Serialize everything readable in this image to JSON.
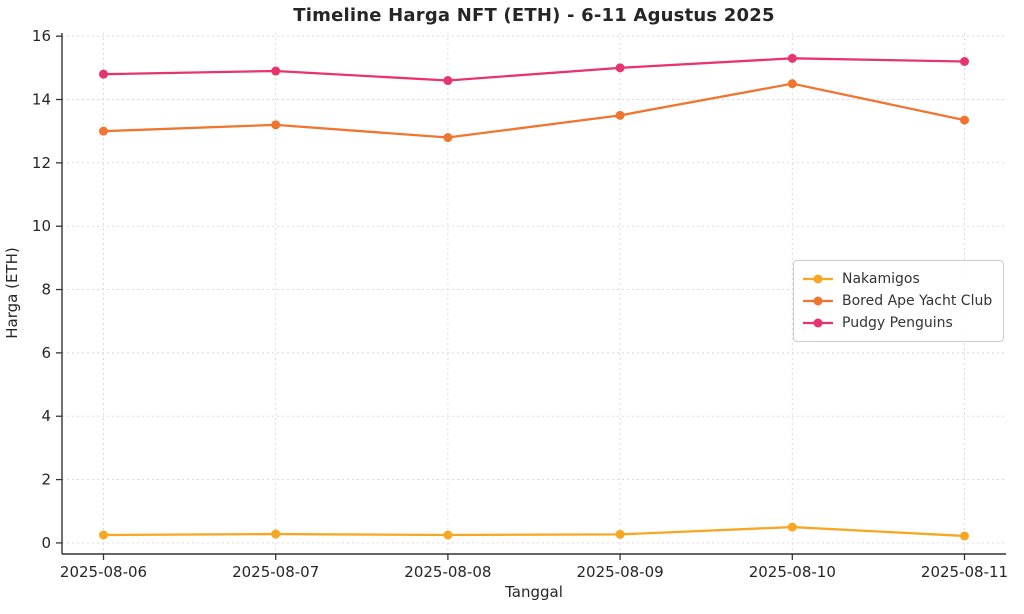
{
  "chart_data": {
    "type": "line",
    "title": "Timeline Harga NFT (ETH) - 6-11 Agustus 2025",
    "xlabel": "Tanggal",
    "ylabel": "Harga (ETH)",
    "categories": [
      "2025-08-06",
      "2025-08-07",
      "2025-08-08",
      "2025-08-09",
      "2025-08-10",
      "2025-08-11"
    ],
    "series": [
      {
        "name": "Nakamigos",
        "color": "#F8A723",
        "values": [
          0.25,
          0.28,
          0.25,
          0.27,
          0.5,
          0.22
        ]
      },
      {
        "name": "Bored Ape Yacht Club",
        "color": "#F1742F",
        "values": [
          13.0,
          13.2,
          12.8,
          13.5,
          14.5,
          13.35
        ]
      },
      {
        "name": "Pudgy Penguins",
        "color": "#E8346D",
        "values": [
          14.8,
          14.9,
          14.6,
          15.0,
          15.3,
          15.2
        ]
      }
    ],
    "yticks": [
      0,
      2,
      4,
      6,
      8,
      10,
      12,
      14,
      16
    ],
    "ylim": [
      -0.35,
      16.1
    ],
    "grid": true,
    "legend_position": "center-right"
  },
  "styles": {
    "background": "#ffffff",
    "grid_color": "#d8d8d8",
    "spine_color": "#333333",
    "tick_color": "#333333",
    "text_color": "#262626",
    "legend_border": "#cccccc"
  }
}
